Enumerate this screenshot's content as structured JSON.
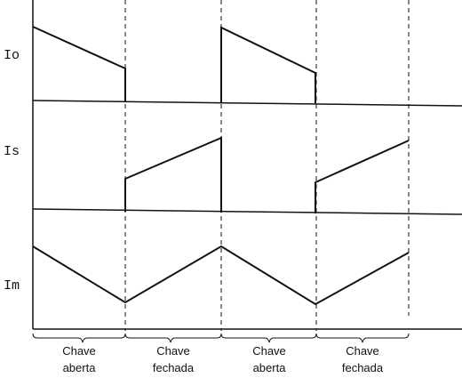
{
  "signals": [
    {
      "label": "Io"
    },
    {
      "label": "Is"
    },
    {
      "label": "Im"
    }
  ],
  "intervals": [
    {
      "line1": "Chave",
      "line2": "aberta"
    },
    {
      "line1": "Chave",
      "line2": "fechada"
    },
    {
      "line1": "Chave",
      "line2": "aberta"
    },
    {
      "line1": "Chave",
      "line2": "fechada"
    }
  ]
}
